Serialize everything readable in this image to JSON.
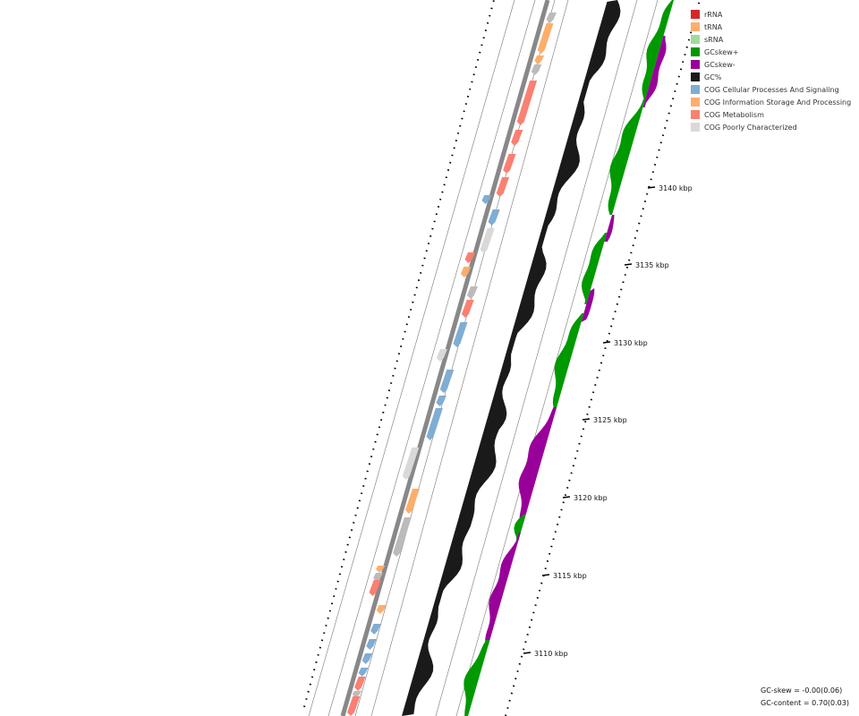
{
  "legend": [
    {
      "label": "rRNA",
      "color": "#d62728"
    },
    {
      "label": "tRNA",
      "color": "#fdae6b"
    },
    {
      "label": "sRNA",
      "color": "#a1d99b"
    },
    {
      "label": "GCskew+",
      "color": "#009900"
    },
    {
      "label": "GCskew-",
      "color": "#990099"
    },
    {
      "label": "GC%",
      "color": "#1a1a1a"
    },
    {
      "label": "COG Cellular Processes And Signaling",
      "color": "#7fadd4"
    },
    {
      "label": "COG Information Storage And Processing",
      "color": "#fdae6b"
    },
    {
      "label": "COG Metabolism",
      "color": "#fa8072"
    },
    {
      "label": "COG Poorly Characterized",
      "color": "#d9d9d9"
    }
  ],
  "axis": {
    "unit": "kbp",
    "ticks": [
      {
        "label": "3110 kbp"
      },
      {
        "label": "3115 kbp"
      },
      {
        "label": "3120 kbp"
      },
      {
        "label": "3125 kbp"
      },
      {
        "label": "3130 kbp"
      },
      {
        "label": "3135 kbp"
      },
      {
        "label": "3140 kbp"
      }
    ]
  },
  "stats": {
    "gc_skew": "GC-skew = -0.00(0.06)",
    "gc_content": "GC-content = 0.70(0.03)"
  }
}
